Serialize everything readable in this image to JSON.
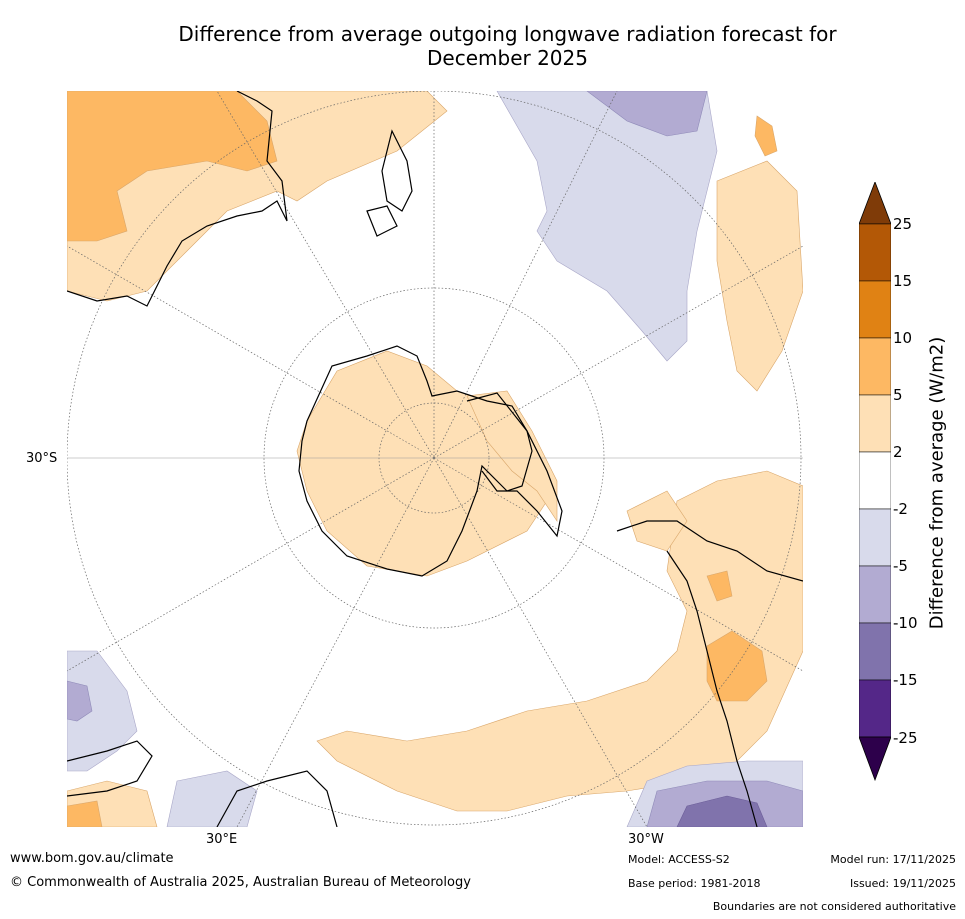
{
  "title_line1": "Difference from average outgoing longwave radiation forecast for",
  "title_line2": "December 2025",
  "map": {
    "lat_label": "30°S",
    "lon_label_east": "30°E",
    "lon_label_west": "30°W"
  },
  "colorbar": {
    "title": "Difference from average (W/m2)",
    "ticks": [
      "25",
      "15",
      "10",
      "5",
      "2",
      "-2",
      "-5",
      "-10",
      "-15",
      "-25"
    ],
    "colors": {
      "over": "#7f3b08",
      "c15_25": "#b35806",
      "c10_15": "#e08214",
      "c5_10": "#fdb863",
      "c2_5": "#fee0b6",
      "neutral": "#ffffff",
      "cm5_m2": "#d8daeb",
      "cm10_m5": "#b2abd2",
      "cm15_m10": "#8073ac",
      "cm25_m15": "#542788",
      "under": "#2d004b"
    }
  },
  "footer": {
    "website": "www.bom.gov.au/climate",
    "copyright": "© Commonwealth of Australia 2025, Australian Bureau of Meteorology",
    "model": "Model: ACCESS-S2",
    "base_period": "Base period: 1981-2018",
    "model_run": "Model run: 17/11/2025",
    "issued": "Issued: 19/11/2025",
    "disclaimer": "Boundaries are not considered authoritative"
  }
}
